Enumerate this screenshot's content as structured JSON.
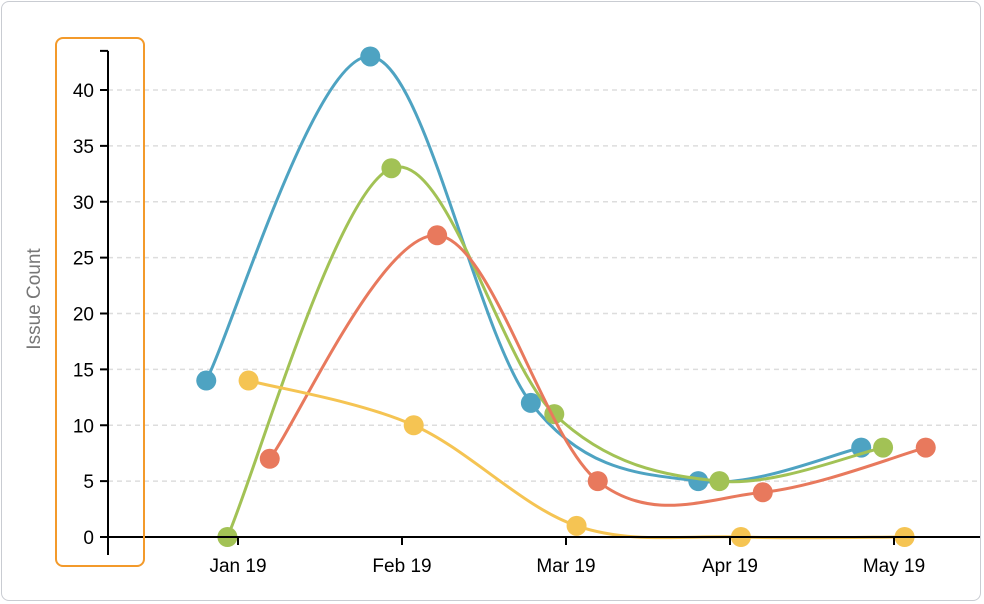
{
  "chart_data": {
    "type": "line",
    "title": "",
    "xlabel": "",
    "ylabel": "Issue Count",
    "ylim": [
      0,
      43.5
    ],
    "yticks": [
      0,
      5,
      10,
      15,
      20,
      25,
      30,
      35,
      40
    ],
    "xticks": [
      {
        "date": "2019-01-01",
        "label": "Jan 19"
      },
      {
        "date": "2019-02-01",
        "label": "Feb 19"
      },
      {
        "date": "2019-03-01",
        "label": "Mar 19"
      },
      {
        "date": "2019-04-01",
        "label": "Apr 19"
      },
      {
        "date": "2019-05-01",
        "label": "May 19"
      }
    ],
    "grid": "horizontal dashed",
    "curve": "smooth",
    "series": [
      {
        "color": "#4ea3c2",
        "x": [
          "2018-12-26",
          "2019-01-26",
          "2019-02-23",
          "2019-03-26",
          "2019-04-25"
        ],
        "y": [
          14,
          43,
          12,
          5,
          8
        ]
      },
      {
        "color": "#a2c255",
        "x": [
          "2018-12-30",
          "2019-01-30",
          "2019-02-27",
          "2019-03-30",
          "2019-04-29"
        ],
        "y": [
          0,
          33,
          11,
          5,
          8
        ]
      },
      {
        "color": "#e8795d",
        "x": [
          "2019-01-07",
          "2019-02-07",
          "2019-03-07",
          "2019-04-07",
          "2019-05-07"
        ],
        "y": [
          7,
          27,
          5,
          4,
          8
        ]
      },
      {
        "color": "#f5c453",
        "x": [
          "2019-01-03",
          "2019-02-03",
          "2019-03-03",
          "2019-04-03",
          "2019-05-03"
        ],
        "y": [
          14,
          10,
          1,
          0,
          0
        ]
      }
    ],
    "highlight_color": "#f39a2b"
  }
}
